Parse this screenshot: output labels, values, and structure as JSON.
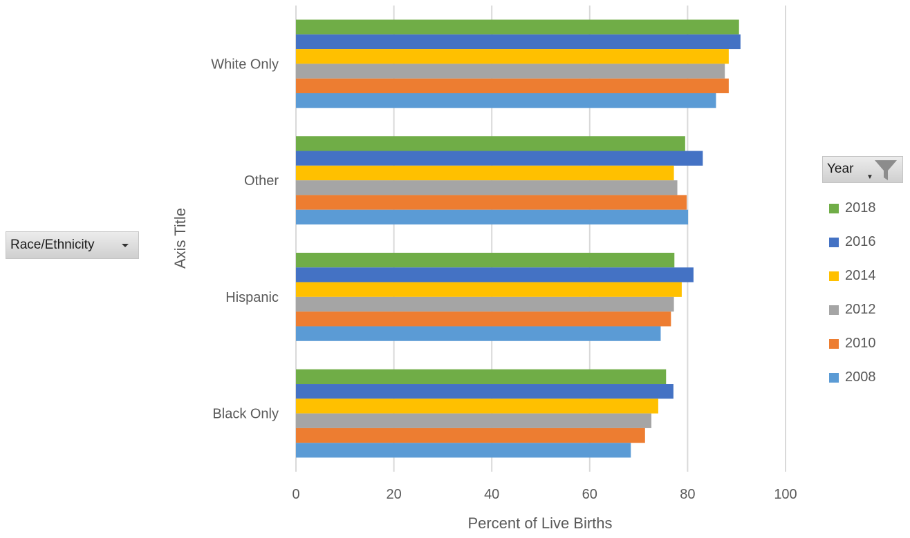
{
  "chart_data": {
    "type": "bar",
    "orientation": "horizontal",
    "title": "",
    "xlabel": "Percent of Live Births",
    "ylabel": "Axis Title",
    "xlim": [
      0,
      100
    ],
    "x_ticks": [
      "0",
      "20",
      "40",
      "60",
      "80",
      "100"
    ],
    "grid": true,
    "categories": [
      "White Only",
      "Other",
      "Hispanic",
      "Black Only"
    ],
    "series": [
      {
        "name": "2018",
        "color": "#70AD47",
        "values": [
          90.5,
          79.5,
          77.3,
          75.6
        ]
      },
      {
        "name": "2016",
        "color": "#4472C4",
        "values": [
          90.8,
          83.1,
          81.2,
          77.1
        ]
      },
      {
        "name": "2014",
        "color": "#FFC000",
        "values": [
          88.4,
          77.2,
          78.8,
          74.0
        ]
      },
      {
        "name": "2012",
        "color": "#A5A5A5",
        "values": [
          87.6,
          77.9,
          77.2,
          72.6
        ]
      },
      {
        "name": "2010",
        "color": "#ED7D31",
        "values": [
          88.4,
          79.8,
          76.6,
          71.3
        ]
      },
      {
        "name": "2008",
        "color": "#5B9BD5",
        "values": [
          85.8,
          80.1,
          74.5,
          68.4
        ]
      }
    ],
    "legend": {
      "title": "Year",
      "placement": "right"
    }
  },
  "controls": {
    "row_field_label": "Race/Ethnicity",
    "legend_field_label": "Year"
  }
}
